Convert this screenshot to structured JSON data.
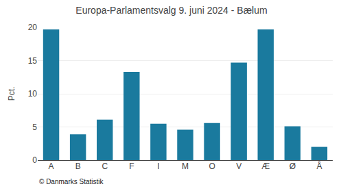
{
  "chart_data": {
    "type": "bar",
    "title": "Europa-Parlamentsvalg 9. juni 2024 - Bælum",
    "categories": [
      "A",
      "B",
      "C",
      "F",
      "I",
      "M",
      "O",
      "V",
      "Æ",
      "Ø",
      "Å"
    ],
    "values": [
      19.7,
      3.9,
      6.1,
      13.3,
      5.5,
      4.6,
      5.6,
      14.7,
      19.7,
      5.1,
      2.0
    ],
    "color": "#1a7a9e",
    "ylabel": "Pct.",
    "ylim": [
      0,
      20
    ],
    "yticks": [
      0,
      5,
      10,
      15,
      20
    ],
    "grid": true,
    "annotations": [
      "© Danmarks Statistik"
    ]
  }
}
